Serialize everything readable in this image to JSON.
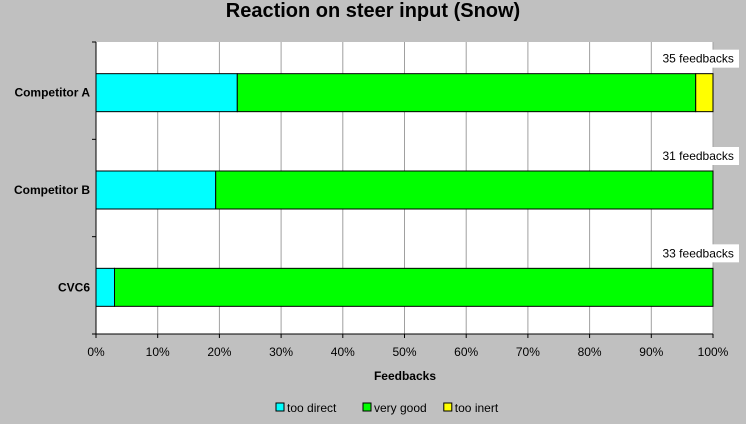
{
  "chart_data": {
    "type": "bar",
    "orientation": "horizontal",
    "stacked": true,
    "percent": true,
    "title": "Reaction on steer input (Snow)",
    "xlabel": "Feedbacks",
    "ylabel": "",
    "xlim": [
      0,
      100
    ],
    "x_ticks": [
      "0%",
      "10%",
      "20%",
      "30%",
      "40%",
      "50%",
      "60%",
      "70%",
      "80%",
      "90%",
      "100%"
    ],
    "categories": [
      "Competitor A",
      "Competitor B",
      "CVC6"
    ],
    "bar_annotations": [
      "35 feedbacks",
      "31 feedbacks",
      "33 feedbacks"
    ],
    "series": [
      {
        "name": "too direct",
        "color": "#00ffff",
        "values": [
          22.9,
          19.4,
          3.0
        ]
      },
      {
        "name": "very good",
        "color": "#00ff00",
        "values": [
          74.3,
          80.6,
          97.0
        ]
      },
      {
        "name": "too inert",
        "color": "#ffff00",
        "values": [
          2.8,
          0,
          0
        ]
      }
    ],
    "grid": true,
    "legend_position": "bottom",
    "plot_background": "#ffffff",
    "page_background": "#c0c0c0"
  }
}
